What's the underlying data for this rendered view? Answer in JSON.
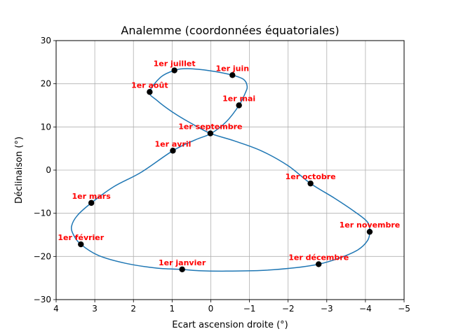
{
  "chart_data": {
    "type": "scatter",
    "title": "Analemme (coordonnées équatoriales)",
    "xlabel": "Ecart ascension droite (°)",
    "ylabel": "Déclinaison (°)",
    "xlim": [
      4,
      -5
    ],
    "ylim": [
      -30,
      30
    ],
    "x_ticks": [
      4,
      3,
      2,
      1,
      0,
      -1,
      -2,
      -3,
      -4,
      -5
    ],
    "x_tick_labels": [
      "4",
      "3",
      "2",
      "1",
      "0",
      "−1",
      "−2",
      "−3",
      "−4",
      "−5"
    ],
    "y_ticks": [
      -30,
      -20,
      -10,
      0,
      10,
      20,
      30
    ],
    "y_tick_labels": [
      "−30",
      "−20",
      "−10",
      "0",
      "10",
      "20",
      "30"
    ],
    "grid": true,
    "curve_color": "#1f77b4",
    "marker_color": "#000000",
    "label_color": "#ff0000",
    "points": [
      {
        "label": "1er janvier",
        "x": 0.74,
        "y": -23.0
      },
      {
        "label": "1er février",
        "x": 3.36,
        "y": -17.2
      },
      {
        "label": "1er mars",
        "x": 3.09,
        "y": -7.6
      },
      {
        "label": "1er avril",
        "x": 0.98,
        "y": 4.5
      },
      {
        "label": "1er mai",
        "x": -0.73,
        "y": 15.0
      },
      {
        "label": "1er juin",
        "x": -0.56,
        "y": 22.0
      },
      {
        "label": "1er juillet",
        "x": 0.94,
        "y": 23.1
      },
      {
        "label": "1er août",
        "x": 1.58,
        "y": 18.1
      },
      {
        "label": "1er septembre",
        "x": 0.01,
        "y": 8.5
      },
      {
        "label": "1er octobre",
        "x": -2.58,
        "y": -3.1
      },
      {
        "label": "1er novembre",
        "x": -4.11,
        "y": -14.3
      },
      {
        "label": "1er décembre",
        "x": -2.79,
        "y": -21.8
      }
    ],
    "curve": [
      [
        0.74,
        -23.0
      ],
      [
        1.4,
        -22.7
      ],
      [
        2.2,
        -21.6
      ],
      [
        2.9,
        -19.8
      ],
      [
        3.36,
        -17.2
      ],
      [
        3.55,
        -15.0
      ],
      [
        3.6,
        -13.0
      ],
      [
        3.45,
        -10.5
      ],
      [
        3.09,
        -7.6
      ],
      [
        2.5,
        -3.8
      ],
      [
        1.8,
        -0.5
      ],
      [
        0.98,
        4.5
      ],
      [
        0.4,
        7.0
      ],
      [
        -0.01,
        8.5
      ],
      [
        -0.4,
        11.2
      ],
      [
        -0.73,
        15.0
      ],
      [
        -0.9,
        18.0
      ],
      [
        -0.94,
        19.5
      ],
      [
        -0.85,
        21.0
      ],
      [
        -0.56,
        22.0
      ],
      [
        0.0,
        23.0
      ],
      [
        0.6,
        23.5
      ],
      [
        0.94,
        23.1
      ],
      [
        1.3,
        21.5
      ],
      [
        1.58,
        18.1
      ],
      [
        1.4,
        16.2
      ],
      [
        1.0,
        13.5
      ],
      [
        0.5,
        10.8
      ],
      [
        0.01,
        8.5
      ],
      [
        -0.6,
        6.8
      ],
      [
        -1.3,
        4.5
      ],
      [
        -2.0,
        1.0
      ],
      [
        -2.58,
        -3.1
      ],
      [
        -3.2,
        -6.5
      ],
      [
        -3.7,
        -9.5
      ],
      [
        -4.05,
        -12.0
      ],
      [
        -4.11,
        -14.3
      ],
      [
        -4.05,
        -16.4
      ],
      [
        -3.8,
        -18.5
      ],
      [
        -3.35,
        -20.3
      ],
      [
        -2.79,
        -21.8
      ],
      [
        -2.2,
        -22.6
      ],
      [
        -1.4,
        -23.2
      ],
      [
        -0.4,
        -23.4
      ],
      [
        0.3,
        -23.3
      ],
      [
        0.74,
        -23.0
      ]
    ]
  }
}
